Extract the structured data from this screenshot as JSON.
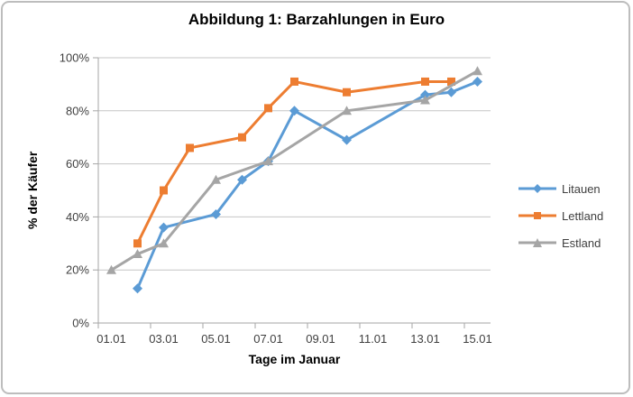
{
  "chart_data": {
    "type": "line",
    "title": "Abbildung 1: Barzahlungen in Euro",
    "xlabel": "Tage im Januar",
    "ylabel": "% der Käufer",
    "x_range": [
      1,
      15
    ],
    "ylim": [
      0,
      100
    ],
    "grid": "horizontal",
    "legend_position": "right",
    "y_ticks": [
      {
        "v": 0,
        "label": "0%"
      },
      {
        "v": 20,
        "label": "20%"
      },
      {
        "v": 40,
        "label": "40%"
      },
      {
        "v": 60,
        "label": "60%"
      },
      {
        "v": 80,
        "label": "80%"
      },
      {
        "v": 100,
        "label": "100%"
      }
    ],
    "x_tick_days": [
      1,
      3,
      5,
      7,
      9,
      11,
      13,
      15
    ],
    "x_tick_labels": [
      "01.01",
      "03.01",
      "05.01",
      "07.01",
      "09.01",
      "11.01",
      "13.01",
      "15.01"
    ],
    "series": [
      {
        "name": "Litauen",
        "color": "#5B9BD5",
        "marker": "diamond",
        "points": [
          [
            2,
            13
          ],
          [
            3,
            36
          ],
          [
            5,
            41
          ],
          [
            6,
            54
          ],
          [
            7,
            61
          ],
          [
            8,
            80
          ],
          [
            10,
            69
          ],
          [
            13,
            86
          ],
          [
            14,
            87
          ],
          [
            15,
            91
          ]
        ]
      },
      {
        "name": "Lettland",
        "color": "#ED7D31",
        "marker": "square",
        "points": [
          [
            2,
            30
          ],
          [
            3,
            50
          ],
          [
            4,
            66
          ],
          [
            6,
            70
          ],
          [
            7,
            81
          ],
          [
            8,
            91
          ],
          [
            10,
            87
          ],
          [
            13,
            91
          ],
          [
            14,
            91
          ]
        ]
      },
      {
        "name": "Estland",
        "color": "#A5A5A5",
        "marker": "triangle",
        "points": [
          [
            1,
            20
          ],
          [
            2,
            26
          ],
          [
            3,
            30
          ],
          [
            5,
            54
          ],
          [
            7,
            61
          ],
          [
            10,
            80
          ],
          [
            13,
            84
          ],
          [
            15,
            95
          ]
        ]
      }
    ],
    "style_colors": {
      "gridline": "#C6C6C6",
      "axis": "#A6A6A6",
      "tick_label": "#404040",
      "frame_border": "#BDBDBD"
    }
  }
}
